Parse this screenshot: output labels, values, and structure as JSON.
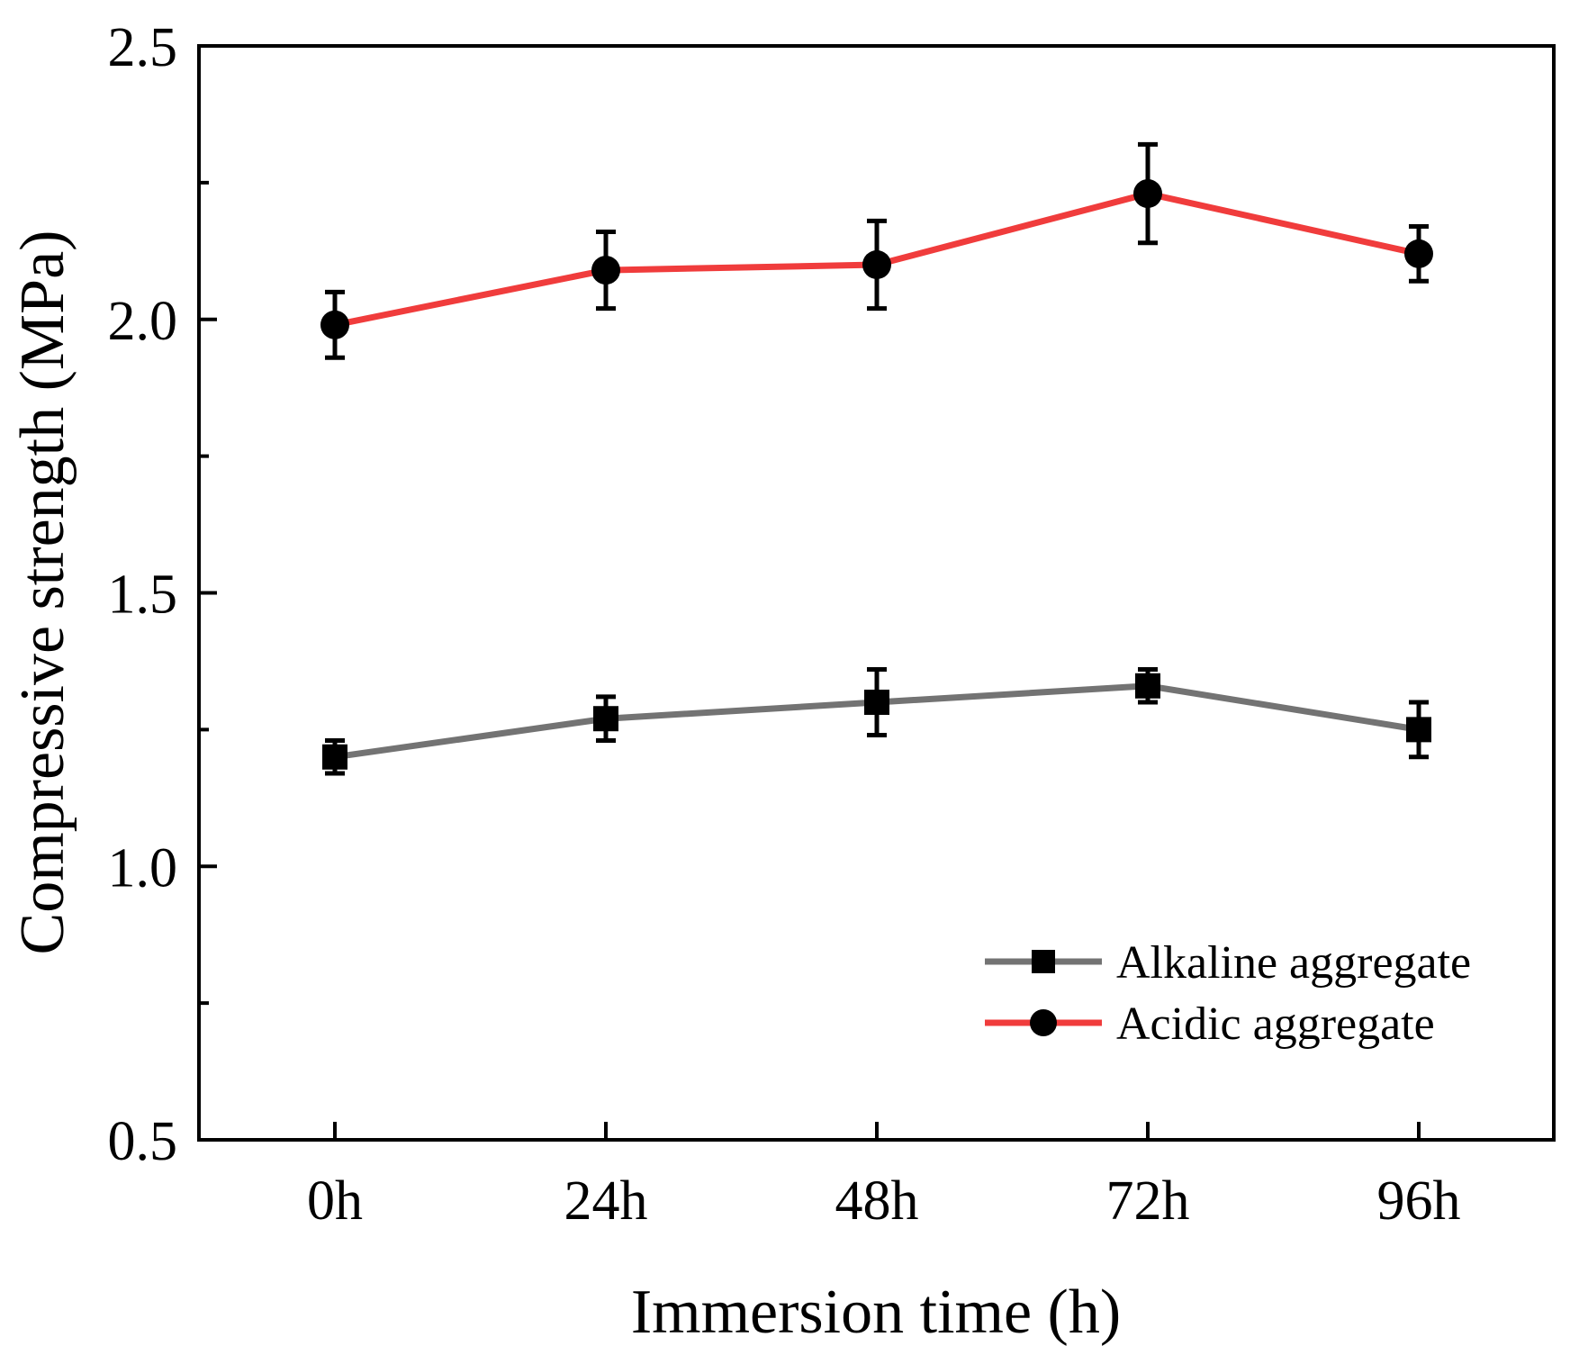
{
  "chart_data": {
    "type": "line",
    "title": "",
    "xlabel": "Immersion time (h)",
    "ylabel": "Compressive strength (MPa)",
    "categories": [
      "0h",
      "24h",
      "48h",
      "72h",
      "96h"
    ],
    "ylim": [
      0.5,
      2.5
    ],
    "yticks": [
      "0.5",
      "1.0",
      "1.5",
      "2.0",
      "2.5"
    ],
    "grid": false,
    "legend_position": "bottom-right",
    "series": [
      {
        "name": "Alkaline aggregate",
        "marker": "square",
        "color": "#737373",
        "values": [
          1.2,
          1.27,
          1.3,
          1.33,
          1.25
        ],
        "errors": [
          0.03,
          0.04,
          0.06,
          0.03,
          0.05
        ]
      },
      {
        "name": "Acidic aggregate",
        "marker": "circle",
        "color": "#f03c3c",
        "values": [
          1.99,
          2.09,
          2.1,
          2.23,
          2.12
        ],
        "errors": [
          0.06,
          0.07,
          0.08,
          0.09,
          0.05
        ]
      }
    ]
  }
}
